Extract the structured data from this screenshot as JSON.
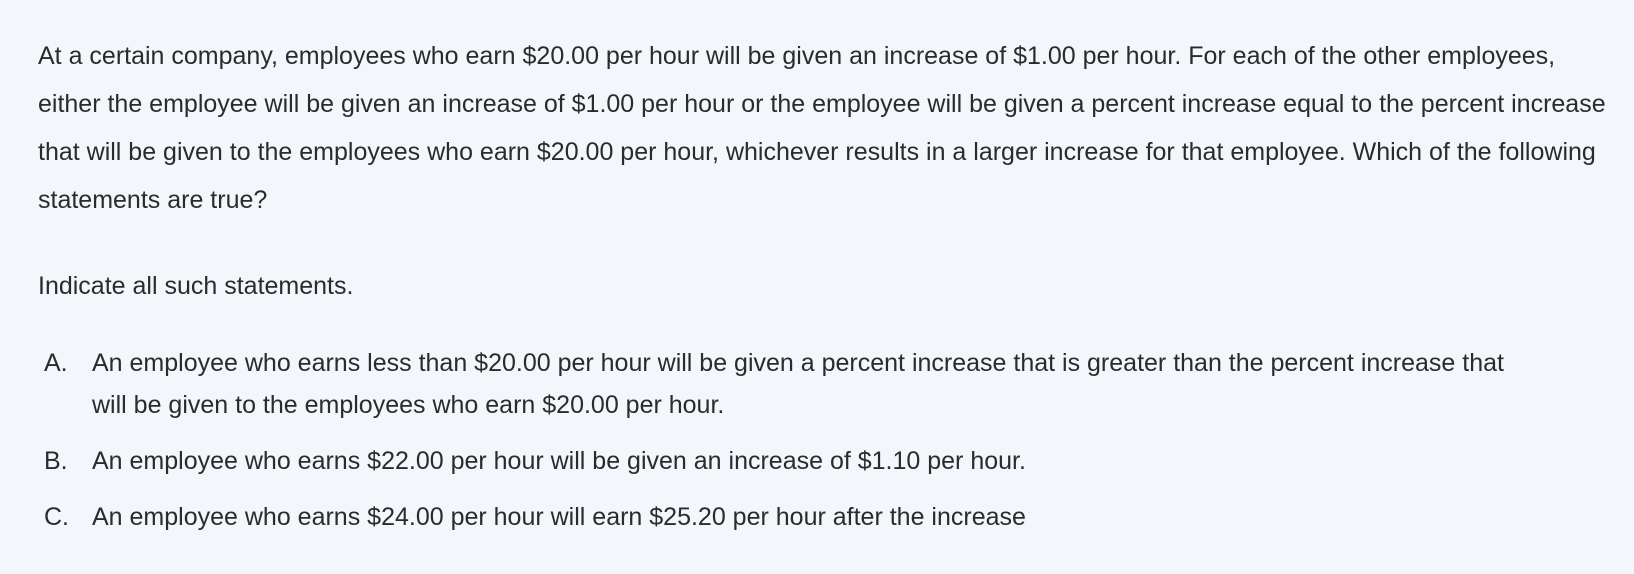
{
  "question": {
    "stem": "At a certain company, employees who earn $20.00 per hour will be given an increase of $1.00 per hour. For each of the other employees, either the employee will be given an increase of $1.00 per hour or the employee will be given a percent increase equal to the percent increase that will be given to the employees who earn $20.00 per hour, whichever results in a larger increase for that employee. Which of the following statements are true?",
    "instruction": "Indicate all such statements.",
    "options": [
      {
        "letter": "A.",
        "text": "An employee who earns less than $20.00 per hour will be given a percent increase that is greater than the percent increase that will be given to the employees who earn $20.00 per hour."
      },
      {
        "letter": "B.",
        "text": "An employee who earns $22.00 per hour will be given an increase of $1.10 per hour."
      },
      {
        "letter": "C.",
        "text": "An employee who earns $24.00 per hour will earn $25.20 per hour after the increase"
      }
    ]
  }
}
